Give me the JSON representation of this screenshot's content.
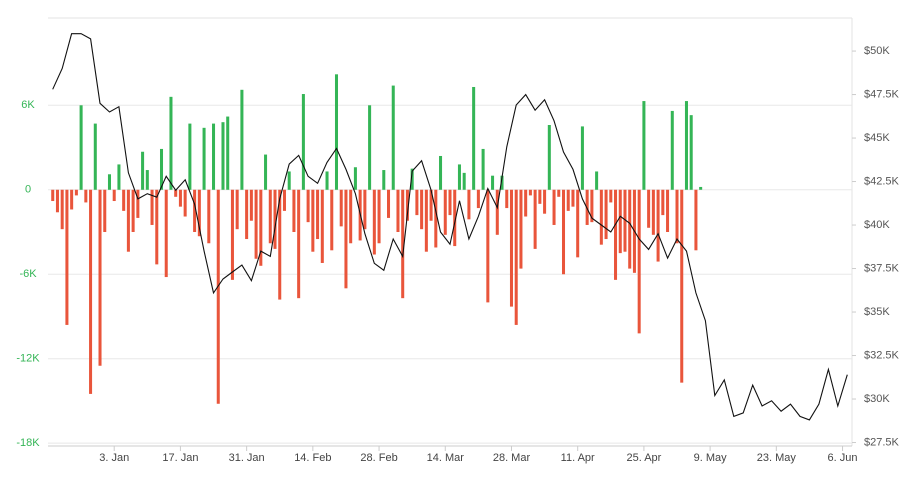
{
  "chart_data": {
    "type": "bar-line",
    "xlim": [
      -11,
      159
    ],
    "xticks": [
      {
        "value": 3,
        "label": "3. Jan"
      },
      {
        "value": 17,
        "label": "17. Jan"
      },
      {
        "value": 31,
        "label": "31. Jan"
      },
      {
        "value": 45,
        "label": "14. Feb"
      },
      {
        "value": 59,
        "label": "28. Feb"
      },
      {
        "value": 73,
        "label": "14. Mar"
      },
      {
        "value": 87,
        "label": "28. Mar"
      },
      {
        "value": 101,
        "label": "11. Apr"
      },
      {
        "value": 115,
        "label": "25. Apr"
      },
      {
        "value": 129,
        "label": "9. May"
      },
      {
        "value": 143,
        "label": "23. May"
      },
      {
        "value": 157,
        "label": "6. Jun"
      }
    ],
    "ylim": [
      -18200,
      12200
    ],
    "yticks": [
      {
        "value": 6000,
        "label": "6K"
      },
      0,
      {
        "value": -6000,
        "label": "-6K"
      },
      {
        "value": -12000,
        "label": "-12K"
      },
      {
        "value": -18000,
        "label": "-18K"
      }
    ],
    "y2lim": [
      27300,
      51900
    ],
    "y2ticks": [
      {
        "value": 27500,
        "label": "$27.5K"
      },
      {
        "value": 30000,
        "label": "$30K"
      },
      {
        "value": 32500,
        "label": "$32.5K"
      },
      {
        "value": 35000,
        "label": "$35K"
      },
      {
        "value": 37500,
        "label": "$37.5K"
      },
      {
        "value": 40000,
        "label": "$40K"
      },
      {
        "value": 42500,
        "label": "$42.5K"
      },
      {
        "value": 45000,
        "label": "$45K"
      },
      {
        "value": 47500,
        "label": "$47.5K"
      },
      {
        "value": 50000,
        "label": "$50K"
      }
    ],
    "grid": true,
    "positive_color": "#34b556",
    "negative_color": "#e9553b",
    "series": [
      {
        "type": "bar",
        "axis": "y",
        "x": [
          -10,
          -9,
          -8,
          -7,
          -6,
          -5,
          -4,
          -3,
          -2,
          -1,
          0,
          1,
          2,
          3,
          4,
          5,
          6,
          7,
          8,
          9,
          10,
          11,
          12,
          13,
          14,
          15,
          16,
          17,
          18,
          19,
          20,
          21,
          22,
          23,
          24,
          25,
          26,
          27,
          28,
          29,
          30,
          31,
          32,
          33,
          34,
          35,
          36,
          37,
          38,
          39,
          40,
          41,
          42,
          43,
          44,
          45,
          46,
          47,
          48,
          49,
          50,
          51,
          52,
          53,
          54,
          55,
          56,
          57,
          58,
          59,
          60,
          61,
          62,
          63,
          64,
          65,
          66,
          67,
          68,
          69,
          70,
          71,
          72,
          73,
          74,
          75,
          76,
          77,
          78,
          79,
          80,
          81,
          82,
          83,
          84,
          85,
          86,
          87,
          88,
          89,
          90,
          91,
          92,
          93,
          94,
          95,
          96,
          97,
          98,
          99,
          100,
          101,
          102,
          103,
          104,
          105,
          106,
          107,
          108,
          109,
          110,
          111,
          112,
          113,
          114,
          115,
          116,
          117,
          118,
          119,
          120,
          121,
          122,
          123,
          124,
          125,
          126,
          127
        ],
        "values": [
          -800,
          -1600,
          -2800,
          -9600,
          -1400,
          -400,
          6000,
          -900,
          -14500,
          4700,
          -12500,
          -3000,
          1100,
          -800,
          1800,
          -1500,
          -4400,
          -3000,
          -2000,
          2700,
          1400,
          -2500,
          -5300,
          2900,
          -6200,
          6600,
          -500,
          -1200,
          -1900,
          4700,
          -3000,
          -3300,
          4400,
          -3800,
          4700,
          -15200,
          4800,
          5200,
          -6400,
          -2800,
          7100,
          -3500,
          -2200,
          -4900,
          -5400,
          2500,
          -3800,
          -4200,
          -7800,
          -1500,
          1300,
          -3000,
          -7700,
          6800,
          -2300,
          -4400,
          -3500,
          -5200,
          1300,
          -4300,
          8200,
          -2600,
          -7000,
          -3800,
          1600,
          -3600,
          -2800,
          6000,
          -4600,
          -3800,
          1400,
          -2000,
          7400,
          -3000,
          -7700,
          -2200,
          1500,
          -1800,
          -2800,
          -4400,
          -2200,
          -4100,
          2400,
          -3200,
          -1800,
          -4000,
          1800,
          1200,
          -2100,
          7300,
          -1300,
          2900,
          -8000,
          1000,
          -3200,
          1000,
          -1300,
          -8300,
          -9600,
          -5600,
          -1900,
          -400,
          -4200,
          -1000,
          -1700,
          4600,
          -2500,
          -500,
          -6000,
          -1500,
          -1200,
          -4800,
          4500,
          -2500,
          -2300,
          1300,
          -3900,
          -3500,
          -900,
          -6400,
          -4500,
          -4400,
          -5600,
          -5900,
          -10200,
          6300,
          -2700,
          -3200,
          -5100,
          -1800,
          -3000,
          5600,
          -3800,
          -13700,
          6300,
          5300,
          -4300,
          200
        ]
      },
      {
        "type": "line",
        "axis": "y2",
        "color": "#111111",
        "x": [
          -10,
          -8,
          -6,
          -4,
          -2,
          0,
          2,
          4,
          6,
          8,
          10,
          12,
          14,
          16,
          18,
          20,
          22,
          24,
          26,
          28,
          30,
          32,
          34,
          36,
          38,
          40,
          42,
          44,
          46,
          48,
          50,
          52,
          54,
          56,
          58,
          60,
          62,
          64,
          66,
          68,
          70,
          72,
          74,
          76,
          78,
          80,
          82,
          84,
          86,
          88,
          90,
          92,
          94,
          96,
          98,
          100,
          102,
          104,
          106,
          108,
          110,
          112,
          114,
          116,
          118,
          120,
          122,
          124,
          126,
          128,
          130,
          132,
          134,
          136,
          138,
          140,
          142,
          144,
          146,
          148,
          150,
          152,
          154,
          156,
          158
        ],
        "values": [
          47800,
          49000,
          51000,
          51000,
          50700,
          47000,
          46500,
          46800,
          43000,
          41500,
          41800,
          41600,
          42800,
          42000,
          42600,
          41200,
          38500,
          36100,
          36900,
          37300,
          37700,
          36800,
          38500,
          38200,
          41500,
          43500,
          44000,
          42800,
          42400,
          43600,
          44400,
          43200,
          41800,
          39500,
          37800,
          37400,
          39200,
          38200,
          43100,
          43700,
          42000,
          39600,
          38900,
          41400,
          39200,
          40500,
          42100,
          41000,
          44500,
          46900,
          47500,
          46600,
          47200,
          46000,
          44200,
          43200,
          41500,
          40400,
          40000,
          39600,
          40500,
          40100,
          39200,
          38600,
          39500,
          38100,
          39200,
          38500,
          36100,
          34500,
          30200,
          31100,
          29000,
          29200,
          30800,
          29600,
          29900,
          29300,
          29700,
          29000,
          28800,
          29700,
          31700,
          29600,
          31400
        ]
      }
    ]
  }
}
